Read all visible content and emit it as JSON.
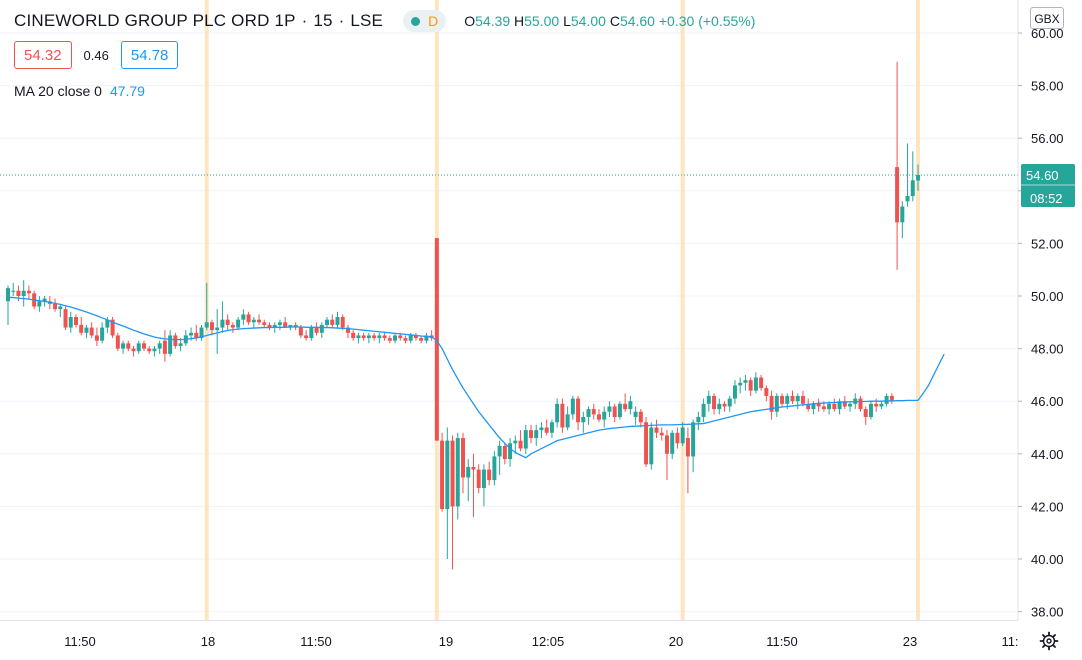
{
  "header": {
    "symbol": "CINEWORLD GROUP PLC ORD 1P",
    "sep1": "·",
    "interval": "15",
    "sep2": "·",
    "exchange": "LSE",
    "badge_letter": "D",
    "o_label": "O",
    "o_value": "54.39",
    "h_label": "H",
    "h_value": "55.00",
    "l_label": "L",
    "l_value": "54.00",
    "c_label": "C",
    "c_value": "54.60",
    "change": "+0.30 (+0.55%)"
  },
  "quote": {
    "sell": "54.32",
    "spread": "0.46",
    "buy": "54.78"
  },
  "indicator": {
    "label": "MA 20 close 0",
    "value": "47.79"
  },
  "currency": "GBX",
  "price_scale": {
    "ticks": [
      "38.00",
      "40.00",
      "42.00",
      "44.00",
      "46.00",
      "48.00",
      "50.00",
      "52.00",
      "54.00",
      "56.00",
      "58.00",
      "60.00"
    ],
    "last_price": "54.60",
    "countdown": "08:52"
  },
  "time_axis": {
    "labels": [
      "11:50",
      "18",
      "11:50",
      "19",
      "12:05",
      "20",
      "11:50",
      "23",
      "11:"
    ]
  },
  "colors": {
    "up": "#26a69a",
    "down": "#ef5350",
    "ma": "#2196f3",
    "session_line": "#ffe0b2",
    "grid": "#f0f3fa",
    "last_price_line": "#26a69a"
  },
  "chart_data": {
    "type": "candlestick",
    "ylim": [
      37.5,
      60.2
    ],
    "session_breaks_at_candle": [
      38,
      82,
      129,
      174
    ],
    "candles": [
      [
        49.8,
        50.4,
        48.9,
        50.3
      ],
      [
        50.2,
        50.5,
        50.0,
        50.2
      ],
      [
        50.2,
        50.4,
        49.8,
        50.0
      ],
      [
        50.0,
        50.6,
        49.6,
        50.2
      ],
      [
        50.2,
        50.4,
        49.9,
        50.1
      ],
      [
        50.1,
        50.2,
        49.5,
        49.6
      ],
      [
        49.6,
        50.0,
        49.4,
        49.8
      ],
      [
        49.8,
        50.0,
        49.6,
        49.9
      ],
      [
        49.8,
        50.0,
        49.5,
        49.7
      ],
      [
        49.7,
        49.9,
        49.4,
        49.5
      ],
      [
        49.5,
        49.7,
        49.2,
        49.6
      ],
      [
        49.5,
        49.6,
        48.7,
        48.8
      ],
      [
        48.8,
        49.4,
        48.6,
        49.2
      ],
      [
        49.2,
        49.3,
        48.8,
        48.9
      ],
      [
        48.9,
        49.2,
        48.5,
        48.6
      ],
      [
        48.6,
        48.9,
        48.4,
        48.8
      ],
      [
        48.8,
        49.0,
        48.4,
        48.5
      ],
      [
        48.5,
        48.8,
        48.1,
        48.3
      ],
      [
        48.3,
        49.0,
        48.2,
        48.8
      ],
      [
        48.8,
        49.2,
        48.6,
        49.1
      ],
      [
        49.1,
        49.2,
        48.4,
        48.5
      ],
      [
        48.5,
        48.6,
        47.9,
        48.0
      ],
      [
        48.0,
        48.3,
        47.8,
        48.2
      ],
      [
        48.2,
        48.3,
        47.9,
        48.0
      ],
      [
        48.0,
        48.1,
        47.7,
        47.9
      ],
      [
        47.9,
        48.3,
        47.8,
        48.2
      ],
      [
        48.2,
        48.3,
        47.9,
        48.0
      ],
      [
        48.0,
        48.1,
        47.8,
        47.9
      ],
      [
        47.9,
        48.1,
        47.7,
        48.0
      ],
      [
        48.0,
        48.3,
        47.8,
        48.2
      ],
      [
        48.3,
        48.7,
        47.5,
        47.8
      ],
      [
        47.8,
        48.7,
        47.7,
        48.5
      ],
      [
        48.5,
        48.6,
        48.0,
        48.1
      ],
      [
        48.1,
        48.4,
        47.9,
        48.2
      ],
      [
        48.2,
        48.7,
        48.1,
        48.5
      ],
      [
        48.5,
        48.8,
        48.3,
        48.6
      ],
      [
        48.6,
        48.9,
        48.3,
        48.4
      ],
      [
        48.4,
        48.9,
        48.3,
        48.8
      ],
      [
        48.8,
        50.5,
        48.7,
        49.0
      ],
      [
        49.0,
        49.1,
        48.5,
        48.7
      ],
      [
        48.7,
        49.5,
        47.8,
        48.8
      ],
      [
        48.8,
        49.8,
        48.6,
        49.1
      ],
      [
        49.1,
        49.3,
        48.7,
        48.9
      ],
      [
        48.9,
        49.0,
        48.6,
        48.8
      ],
      [
        48.8,
        49.2,
        48.7,
        49.1
      ],
      [
        49.1,
        49.5,
        48.9,
        49.3
      ],
      [
        49.3,
        49.4,
        48.9,
        49.0
      ],
      [
        49.0,
        49.2,
        48.8,
        49.1
      ],
      [
        49.1,
        49.3,
        48.9,
        49.0
      ],
      [
        49.0,
        49.1,
        48.8,
        48.9
      ],
      [
        48.9,
        49.0,
        48.7,
        48.8
      ],
      [
        48.8,
        49.0,
        48.6,
        48.9
      ],
      [
        48.9,
        49.1,
        48.7,
        49.0
      ],
      [
        49.0,
        49.2,
        48.8,
        48.8
      ],
      [
        48.8,
        48.9,
        48.7,
        48.9
      ],
      [
        48.9,
        49.0,
        48.7,
        48.8
      ],
      [
        48.8,
        48.9,
        48.4,
        48.5
      ],
      [
        48.5,
        48.7,
        48.3,
        48.4
      ],
      [
        48.4,
        48.9,
        48.3,
        48.8
      ],
      [
        48.8,
        49.0,
        48.5,
        48.6
      ],
      [
        48.6,
        49.0,
        48.4,
        48.9
      ],
      [
        48.9,
        49.2,
        48.8,
        49.1
      ],
      [
        49.1,
        49.3,
        48.8,
        48.9
      ],
      [
        48.9,
        49.4,
        48.8,
        49.2
      ],
      [
        49.2,
        49.3,
        48.7,
        48.8
      ],
      [
        48.8,
        48.9,
        48.4,
        48.6
      ],
      [
        48.6,
        48.7,
        48.3,
        48.4
      ],
      [
        48.4,
        48.6,
        48.2,
        48.5
      ],
      [
        48.5,
        48.6,
        48.3,
        48.4
      ],
      [
        48.4,
        48.6,
        48.2,
        48.5
      ],
      [
        48.5,
        48.6,
        48.3,
        48.4
      ],
      [
        48.4,
        48.6,
        48.2,
        48.5
      ],
      [
        48.5,
        48.6,
        48.3,
        48.4
      ],
      [
        48.4,
        48.5,
        48.2,
        48.3
      ],
      [
        48.3,
        48.6,
        48.2,
        48.5
      ],
      [
        48.5,
        48.6,
        48.3,
        48.4
      ],
      [
        48.4,
        48.5,
        48.2,
        48.3
      ],
      [
        48.3,
        48.6,
        48.2,
        48.5
      ],
      [
        48.5,
        48.6,
        48.3,
        48.4
      ],
      [
        48.4,
        48.5,
        48.2,
        48.3
      ],
      [
        48.3,
        48.6,
        48.2,
        48.5
      ],
      [
        48.5,
        48.7,
        48.3,
        48.4
      ],
      [
        52.2,
        52.2,
        44.5,
        44.5
      ],
      [
        44.5,
        44.8,
        41.8,
        41.9
      ],
      [
        41.9,
        45.0,
        40.0,
        44.5
      ],
      [
        44.5,
        44.7,
        39.6,
        42.0
      ],
      [
        42.0,
        44.8,
        41.5,
        44.6
      ],
      [
        44.6,
        44.8,
        42.5,
        43.1
      ],
      [
        43.1,
        43.8,
        42.2,
        43.5
      ],
      [
        43.5,
        44.0,
        41.6,
        43.4
      ],
      [
        43.4,
        43.6,
        42.5,
        42.7
      ],
      [
        42.7,
        43.6,
        42.0,
        43.4
      ],
      [
        43.4,
        43.7,
        42.8,
        43.0
      ],
      [
        43.0,
        44.1,
        42.8,
        43.9
      ],
      [
        43.9,
        44.5,
        43.2,
        44.3
      ],
      [
        44.3,
        44.4,
        43.6,
        43.8
      ],
      [
        43.8,
        44.6,
        43.5,
        44.4
      ],
      [
        44.4,
        44.7,
        44.0,
        44.5
      ],
      [
        44.5,
        44.9,
        44.1,
        44.2
      ],
      [
        44.2,
        45.1,
        44.0,
        44.9
      ],
      [
        44.9,
        45.1,
        44.4,
        44.6
      ],
      [
        44.6,
        45.1,
        44.3,
        44.9
      ],
      [
        44.9,
        45.2,
        44.6,
        45.0
      ],
      [
        45.0,
        45.3,
        44.7,
        44.8
      ],
      [
        44.8,
        45.3,
        44.6,
        45.2
      ],
      [
        45.2,
        46.1,
        45.0,
        45.9
      ],
      [
        45.9,
        46.1,
        44.8,
        45.0
      ],
      [
        45.0,
        45.8,
        44.9,
        45.5
      ],
      [
        45.5,
        46.2,
        45.3,
        46.1
      ],
      [
        46.1,
        46.2,
        44.9,
        45.2
      ],
      [
        45.2,
        45.6,
        44.8,
        45.4
      ],
      [
        45.4,
        45.8,
        45.1,
        45.7
      ],
      [
        45.7,
        45.9,
        45.3,
        45.5
      ],
      [
        45.5,
        45.7,
        45.2,
        45.3
      ],
      [
        45.3,
        45.8,
        45.0,
        45.6
      ],
      [
        45.6,
        46.0,
        45.4,
        45.8
      ],
      [
        45.8,
        45.9,
        45.2,
        45.4
      ],
      [
        45.4,
        46.0,
        45.3,
        45.9
      ],
      [
        45.9,
        46.3,
        45.6,
        45.7
      ],
      [
        45.7,
        46.2,
        45.5,
        46.0
      ],
      [
        45.4,
        45.8,
        45.1,
        45.6
      ],
      [
        45.6,
        45.7,
        45.0,
        45.2
      ],
      [
        45.2,
        45.4,
        43.5,
        43.6
      ],
      [
        43.6,
        45.2,
        43.4,
        45.0
      ],
      [
        45.0,
        45.3,
        44.6,
        44.8
      ],
      [
        44.8,
        45.0,
        44.5,
        44.7
      ],
      [
        44.7,
        44.9,
        43.0,
        44.0
      ],
      [
        44.0,
        44.9,
        43.8,
        44.8
      ],
      [
        44.8,
        45.0,
        44.2,
        44.4
      ],
      [
        44.4,
        45.2,
        44.3,
        45.0
      ],
      [
        44.6,
        45.0,
        42.5,
        43.9
      ],
      [
        43.9,
        45.3,
        43.3,
        45.2
      ],
      [
        45.2,
        45.6,
        44.9,
        45.4
      ],
      [
        45.4,
        46.1,
        45.2,
        45.9
      ],
      [
        45.9,
        46.4,
        45.6,
        46.2
      ],
      [
        46.2,
        46.3,
        45.5,
        45.7
      ],
      [
        45.7,
        46.1,
        45.5,
        45.9
      ],
      [
        45.9,
        46.0,
        45.6,
        45.8
      ],
      [
        45.8,
        46.2,
        45.6,
        46.1
      ],
      [
        46.1,
        46.8,
        45.9,
        46.6
      ],
      [
        46.6,
        46.9,
        46.3,
        46.7
      ],
      [
        46.7,
        47.0,
        46.4,
        46.8
      ],
      [
        46.8,
        46.9,
        46.2,
        46.4
      ],
      [
        46.4,
        47.1,
        46.3,
        46.9
      ],
      [
        46.9,
        47.0,
        46.4,
        46.5
      ],
      [
        46.5,
        46.6,
        46.0,
        46.2
      ],
      [
        46.2,
        46.4,
        45.3,
        45.6
      ],
      [
        45.6,
        46.3,
        45.4,
        46.2
      ],
      [
        46.2,
        46.3,
        45.8,
        45.9
      ],
      [
        45.9,
        46.3,
        45.7,
        46.2
      ],
      [
        46.2,
        46.4,
        45.9,
        46.0
      ],
      [
        46.0,
        46.3,
        45.7,
        46.2
      ],
      [
        46.2,
        46.4,
        45.8,
        45.9
      ],
      [
        45.9,
        46.1,
        45.6,
        45.7
      ],
      [
        45.7,
        46.0,
        45.5,
        45.9
      ],
      [
        45.9,
        46.1,
        45.6,
        45.8
      ],
      [
        45.8,
        46.0,
        45.6,
        45.7
      ],
      [
        45.7,
        46.0,
        45.5,
        45.9
      ],
      [
        45.9,
        46.1,
        45.6,
        45.7
      ],
      [
        45.7,
        46.1,
        45.5,
        46.0
      ],
      [
        46.0,
        46.2,
        45.7,
        45.8
      ],
      [
        45.8,
        46.0,
        45.6,
        45.9
      ],
      [
        45.9,
        46.3,
        45.7,
        46.1
      ],
      [
        46.1,
        46.2,
        45.6,
        45.7
      ],
      [
        45.7,
        45.8,
        45.1,
        45.4
      ],
      [
        45.4,
        46.0,
        45.3,
        45.9
      ],
      [
        45.9,
        46.1,
        45.6,
        45.8
      ],
      [
        45.8,
        46.0,
        45.7,
        45.9
      ],
      [
        45.9,
        46.3,
        45.8,
        46.2
      ],
      [
        46.2,
        46.3,
        45.9,
        46.0
      ],
      [
        54.9,
        58.9,
        51.0,
        52.8
      ],
      [
        52.8,
        53.6,
        52.2,
        53.4
      ],
      [
        53.6,
        55.8,
        53.4,
        53.8
      ],
      [
        53.8,
        55.5,
        53.6,
        54.4
      ],
      [
        54.39,
        55.0,
        54.0,
        54.6
      ]
    ],
    "moving_average": {
      "name": "MA 20 close 0",
      "values": [
        49.95,
        49.94,
        49.92,
        49.9,
        49.88,
        49.85,
        49.82,
        49.79,
        49.76,
        49.72,
        49.68,
        49.63,
        49.58,
        49.52,
        49.46,
        49.39,
        49.32,
        49.25,
        49.17,
        49.09,
        49.0,
        48.93,
        48.86,
        48.78,
        48.7,
        48.63,
        48.56,
        48.5,
        48.44,
        48.4,
        48.37,
        48.35,
        48.34,
        48.34,
        48.35,
        48.38,
        48.41,
        48.45,
        48.5,
        48.55,
        48.6,
        48.65,
        48.69,
        48.72,
        48.74,
        48.76,
        48.77,
        48.78,
        48.79,
        48.8,
        48.8,
        48.81,
        48.81,
        48.81,
        48.82,
        48.82,
        48.82,
        48.81,
        48.81,
        48.81,
        48.8,
        48.8,
        48.79,
        48.78,
        48.77,
        48.76,
        48.74,
        48.72,
        48.7,
        48.68,
        48.66,
        48.64,
        48.62,
        48.6,
        48.58,
        48.56,
        48.54,
        48.52,
        48.5,
        48.48,
        48.46,
        48.45,
        48.3,
        48.0,
        47.6,
        47.2,
        46.85,
        46.5,
        46.2,
        45.9,
        45.6,
        45.35,
        45.1,
        44.85,
        44.6,
        44.4,
        44.2,
        44.05,
        43.95,
        43.85,
        44.0,
        44.1,
        44.2,
        44.3,
        44.4,
        44.5,
        44.55,
        44.6,
        44.65,
        44.7,
        44.75,
        44.8,
        44.85,
        44.9,
        44.93,
        44.96,
        44.98,
        45.0,
        45.02,
        45.04,
        45.05,
        45.06,
        45.07,
        45.08,
        45.09,
        45.1,
        45.1,
        45.1,
        45.11,
        45.12,
        45.12,
        45.13,
        45.14,
        45.15,
        45.2,
        45.25,
        45.3,
        45.35,
        45.4,
        45.45,
        45.5,
        45.55,
        45.6,
        45.63,
        45.66,
        45.69,
        45.72,
        45.75,
        45.78,
        45.8,
        45.82,
        45.84,
        45.86,
        45.88,
        45.9,
        45.92,
        45.93,
        45.94,
        45.95,
        45.96,
        45.97,
        45.98,
        45.98,
        45.99,
        45.99,
        46.0,
        46.0,
        46.0,
        46.01,
        46.01,
        46.02,
        46.02,
        46.03,
        46.03,
        46.03,
        46.3,
        46.6,
        47.0,
        47.4,
        47.79
      ]
    }
  }
}
